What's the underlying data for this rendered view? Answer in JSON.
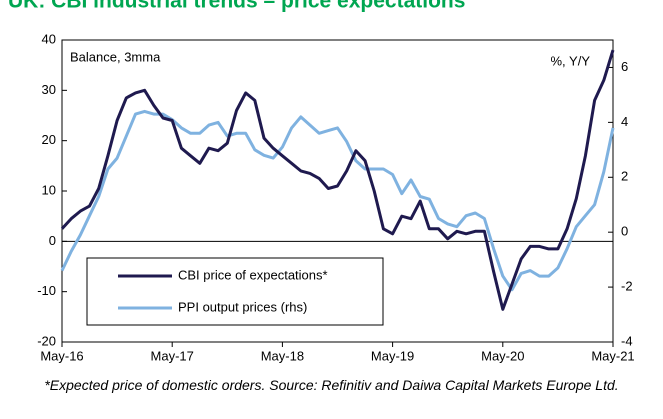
{
  "chart_data": {
    "type": "line",
    "title": "UK: CBI industrial trends – price expectations",
    "left_axis_label": "Balance, 3mma",
    "right_axis_label": "%, Y/Y",
    "footnote": "*Expected price of domestic orders. Source: Refinitiv and Daiwa Capital Markets Europe Ltd.",
    "categories": [
      "May-16",
      null,
      null,
      null,
      null,
      null,
      null,
      null,
      null,
      null,
      null,
      null,
      "May-17",
      null,
      null,
      null,
      null,
      null,
      null,
      null,
      null,
      null,
      null,
      null,
      "May-18",
      null,
      null,
      null,
      null,
      null,
      null,
      null,
      null,
      null,
      null,
      null,
      "May-19",
      null,
      null,
      null,
      null,
      null,
      null,
      null,
      null,
      null,
      null,
      null,
      "May-20",
      null,
      null,
      null,
      null,
      null,
      null,
      null,
      null,
      null,
      null,
      null,
      "May-21"
    ],
    "series": [
      {
        "name": "CBI price of expectations*",
        "color": "#1f1a4f",
        "axis": "y",
        "values": [
          2.5,
          4.5,
          6,
          7,
          10.5,
          17,
          24,
          28.5,
          29.5,
          30,
          27,
          24.5,
          24,
          18.5,
          17,
          15.5,
          18.5,
          18,
          19.5,
          26,
          29.5,
          28,
          20.5,
          18.5,
          17,
          15.5,
          14,
          13.5,
          12.5,
          10.5,
          11,
          14,
          18,
          16,
          10,
          2.5,
          1.5,
          5,
          4.5,
          8,
          2.5,
          2.5,
          0.5,
          2,
          1.5,
          2,
          2,
          -6,
          -13.5,
          -8.5,
          -3.5,
          -1,
          -1,
          -1.5,
          -1.5,
          2.5,
          8.5,
          17,
          28,
          32,
          38
        ]
      },
      {
        "name": "PPI output prices (rhs)",
        "color": "#7fb2e0",
        "axis": "y2",
        "values": [
          -1.4,
          -0.7,
          -0.1,
          0.6,
          1.3,
          2.3,
          2.7,
          3.5,
          4.3,
          4.4,
          4.3,
          4.3,
          4.1,
          3.8,
          3.6,
          3.6,
          3.9,
          4.0,
          3.5,
          3.6,
          3.6,
          3.0,
          2.8,
          2.7,
          3.1,
          3.8,
          4.2,
          3.9,
          3.6,
          3.7,
          3.8,
          3.3,
          2.6,
          2.3,
          2.3,
          2.3,
          2.1,
          1.4,
          1.9,
          1.3,
          1.2,
          0.5,
          0.3,
          0.2,
          0.6,
          0.7,
          0.5,
          -0.6,
          -1.6,
          -2.1,
          -1.5,
          -1.4,
          -1.6,
          -1.6,
          -1.3,
          -0.6,
          0.2,
          0.6,
          1.0,
          2.2,
          3.8
        ]
      }
    ],
    "ylim": [
      -20,
      40
    ],
    "yticks": [
      -20,
      -10,
      0,
      10,
      20,
      30,
      40
    ],
    "y2lim": [
      -4,
      7
    ],
    "y2ticks": [
      -4,
      -2,
      0,
      2,
      4,
      6
    ],
    "title_color": "#00a651",
    "legend": "lower left"
  }
}
